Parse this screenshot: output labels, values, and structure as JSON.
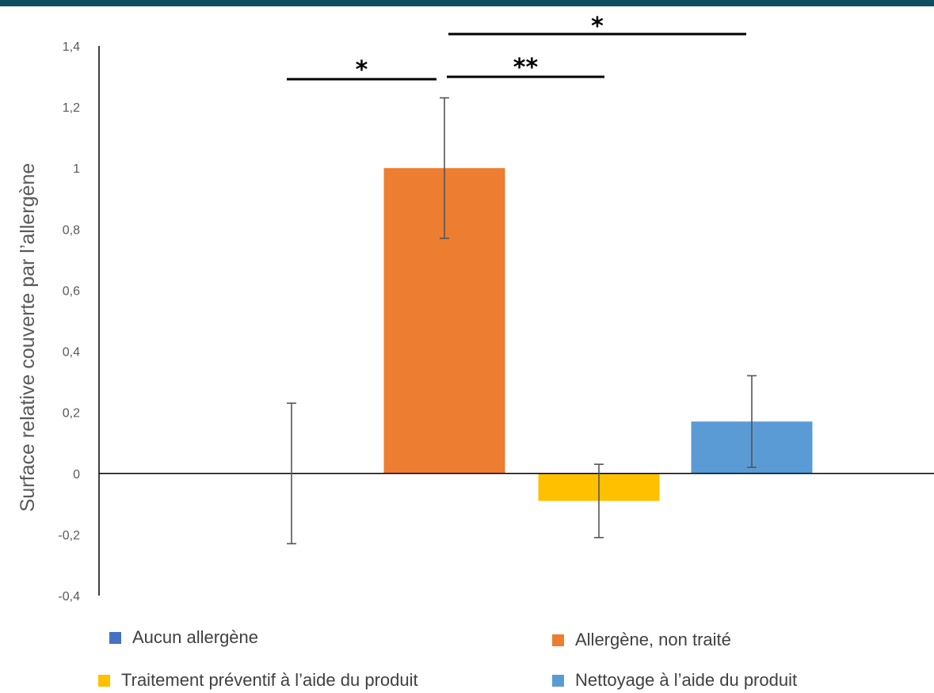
{
  "header_band_color": "#0f4d61",
  "chart_data": {
    "type": "bar",
    "ylabel": "Surface relative couverte par l’allergène",
    "ylim": [
      -0.4,
      1.4
    ],
    "yticks": [
      1.4,
      1.2,
      1,
      0.8,
      0.6,
      0.4,
      0.2,
      0,
      -0.2,
      -0.4
    ],
    "ytick_labels": [
      "1,4",
      "1,2",
      "1",
      "0,8",
      "0,6",
      "0,4",
      "0,2",
      "0",
      "-0,2",
      "-0,4"
    ],
    "grid": false,
    "legend_position": "bottom",
    "series": [
      {
        "name": "Aucun allergène",
        "value": 0.0,
        "error": 0.23,
        "color": "#4472c4"
      },
      {
        "name": "Allergène, non traité",
        "value": 1.0,
        "error": 0.23,
        "color": "#ed7d31"
      },
      {
        "name": "Traitement préventif à l’aide du produit",
        "value": -0.09,
        "error": 0.12,
        "color": "#ffc000"
      },
      {
        "name": "Nettoyage à l’aide du produit",
        "value": 0.17,
        "error": 0.15,
        "color": "#5b9bd5"
      }
    ],
    "significance": [
      {
        "from": 0,
        "to": 1,
        "label": "*"
      },
      {
        "from": 1,
        "to": 2,
        "label": "**"
      },
      {
        "from": 1,
        "to": 3,
        "label": "*"
      }
    ]
  }
}
